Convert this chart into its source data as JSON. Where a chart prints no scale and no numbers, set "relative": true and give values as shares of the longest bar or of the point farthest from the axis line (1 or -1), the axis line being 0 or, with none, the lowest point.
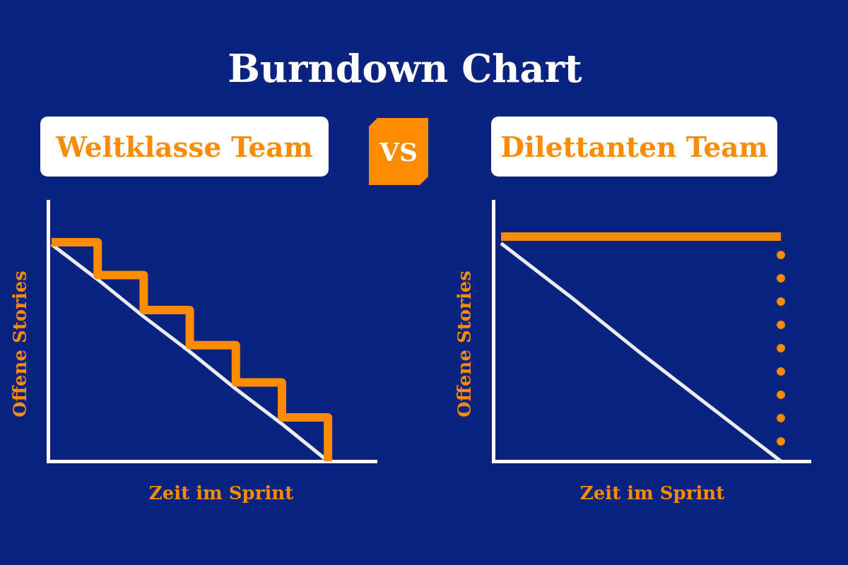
{
  "chart_data": [
    {
      "type": "other",
      "title": "Burndown Chart"
    },
    {
      "type": "line",
      "title": "Weltklasse Team",
      "xlabel": "Zeit im Sprint",
      "ylabel": "Offene Stories",
      "relative": true,
      "marker": "none",
      "line_style": "solid",
      "categories": [
        null,
        null,
        null,
        null,
        null,
        null,
        null
      ],
      "series": [
        {
          "type": "step",
          "color": "#fb8c00",
          "values": [
            1,
            0.85,
            0.69,
            0.53,
            0.36,
            0.2,
            0
          ]
        },
        {
          "type": "line",
          "color": "#eceef6",
          "values": [
            0.99,
            0.83,
            0.66,
            0.5,
            0.33,
            0.17,
            0
          ]
        }
      ]
    },
    {
      "type": "other",
      "annotations": [
        "VS"
      ]
    },
    {
      "type": "line",
      "title": "Dilettanten Team",
      "xlabel": "Zeit im Sprint",
      "ylabel": "Offene Stories",
      "relative": true,
      "marker": "none",
      "line_style": "solid",
      "categories": [
        null,
        null,
        null,
        null,
        null
      ],
      "series": [
        {
          "type": "line",
          "color": "#fb8c00",
          "values": [
            1,
            1,
            1,
            1,
            1
          ]
        },
        {
          "type": "line",
          "color": "#eceef6",
          "values": [
            0.97,
            0.73,
            0.48,
            0.24,
            0
          ]
        }
      ],
      "ref_lines": [
        {
          "axis": "x",
          "color": "#fb8c00",
          "line_style": "dotted"
        }
      ]
    }
  ]
}
